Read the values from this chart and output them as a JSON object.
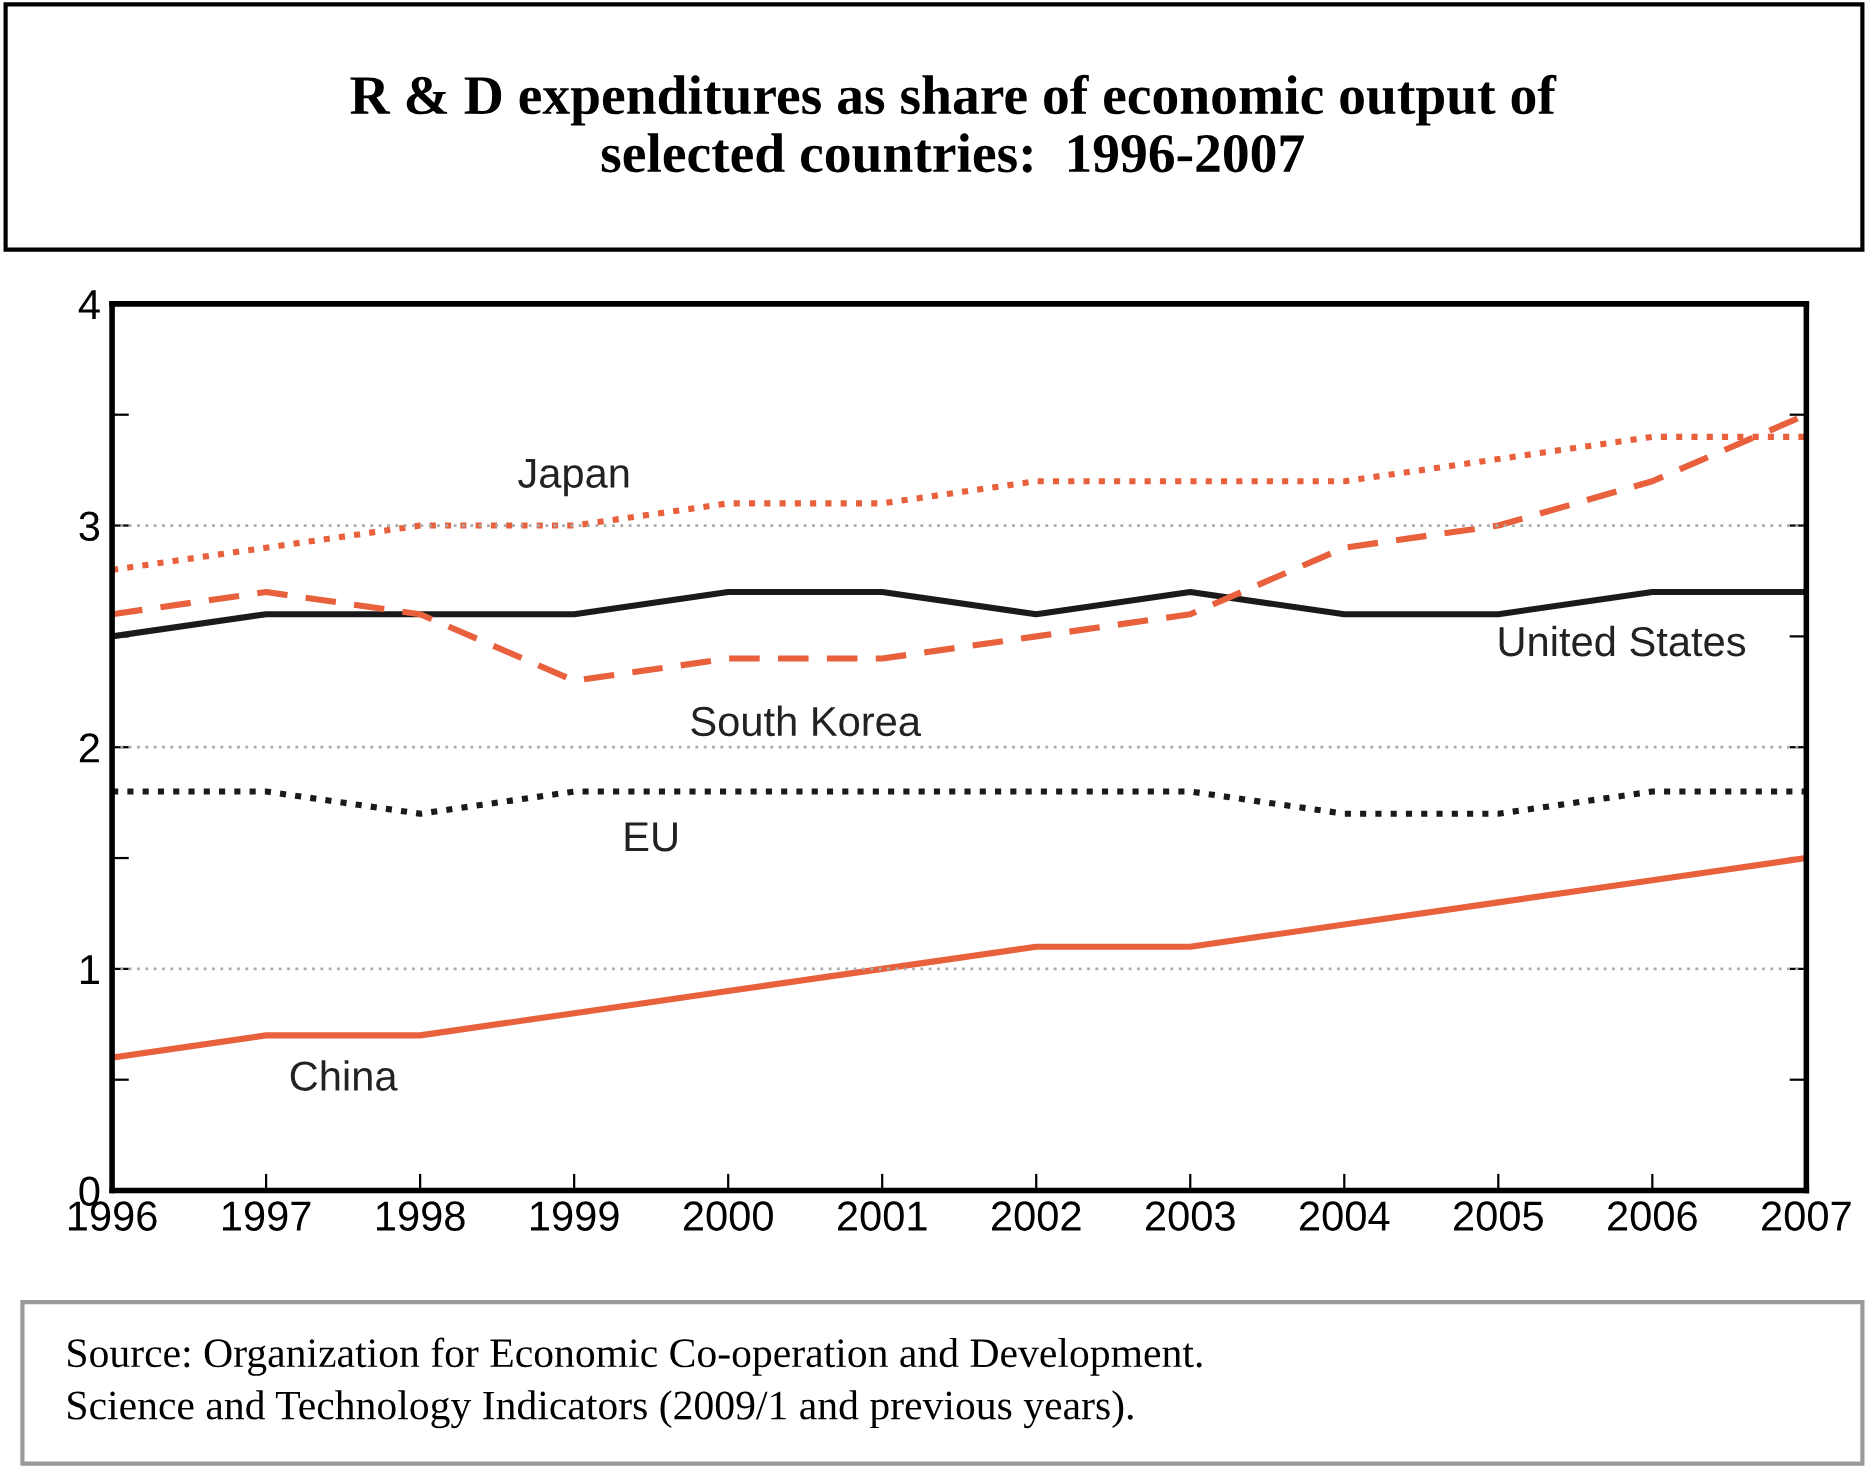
{
  "chart_data": {
    "type": "line",
    "title": "R & D expenditures as share of economic output of\nselected countries:  1996-2007",
    "x": [
      1996,
      1997,
      1998,
      1999,
      2000,
      2001,
      2002,
      2003,
      2004,
      2005,
      2006,
      2007
    ],
    "series": [
      {
        "name": "Japan",
        "color": "#e8603c",
        "line_style": "dotted",
        "values": [
          2.8,
          2.9,
          3.0,
          3.0,
          3.1,
          3.1,
          3.2,
          3.2,
          3.2,
          3.3,
          3.4,
          3.4
        ]
      },
      {
        "name": "United States",
        "color": "#1a1a1a",
        "line_style": "solid",
        "values": [
          2.5,
          2.6,
          2.6,
          2.6,
          2.7,
          2.7,
          2.6,
          2.7,
          2.6,
          2.6,
          2.7,
          2.7
        ]
      },
      {
        "name": "South Korea",
        "color": "#e8603c",
        "line_style": "dashed",
        "values": [
          2.6,
          2.7,
          2.6,
          2.3,
          2.4,
          2.4,
          2.5,
          2.6,
          2.9,
          3.0,
          3.2,
          3.5
        ]
      },
      {
        "name": "EU",
        "color": "#1a1a1a",
        "line_style": "dotted",
        "values": [
          1.8,
          1.8,
          1.7,
          1.8,
          1.8,
          1.8,
          1.8,
          1.8,
          1.7,
          1.7,
          1.8,
          1.8
        ]
      },
      {
        "name": "China",
        "color": "#e8603c",
        "line_style": "solid",
        "values": [
          0.6,
          0.7,
          0.7,
          0.8,
          0.9,
          1.0,
          1.1,
          1.1,
          1.2,
          1.3,
          1.4,
          1.5
        ]
      }
    ],
    "xlim": [
      1996,
      2007
    ],
    "xticks": [
      1996,
      1997,
      1998,
      1999,
      2000,
      2001,
      2002,
      2003,
      2004,
      2005,
      2006,
      2007
    ],
    "ylim": [
      0,
      4
    ],
    "yticks": [
      0,
      {
        "value": 0.5,
        "label": null
      },
      1,
      {
        "value": 1.5,
        "label": null
      },
      2,
      {
        "value": 2.5,
        "label": null
      },
      3,
      {
        "value": 3.5,
        "label": null
      },
      4
    ],
    "grid": "y",
    "marker": "none",
    "legend": false,
    "annotations": [
      "Source: Organization for Economic Co-operation and Development.\nScience and Technology Indicators (2009/1 and previous years)."
    ]
  }
}
